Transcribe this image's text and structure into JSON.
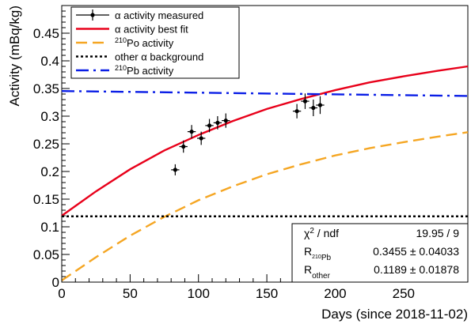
{
  "chart_data": {
    "type": "scatter",
    "xlabel": "Days (since 2018-11-02)",
    "ylabel": "Activity (mBq/kg)",
    "xlim": [
      0,
      297
    ],
    "ylim": [
      0,
      0.5
    ],
    "x_ticks": [
      "0",
      "50",
      "100",
      "150",
      "200",
      "250"
    ],
    "x_tick_values": [
      0,
      50,
      100,
      150,
      200,
      250
    ],
    "y_ticks": [
      "0",
      "0.05",
      "0.1",
      "0.15",
      "0.2",
      "0.25",
      "0.3",
      "0.35",
      "0.4",
      "0.45"
    ],
    "y_tick_values": [
      0,
      0.05,
      0.1,
      0.15,
      0.2,
      0.25,
      0.3,
      0.35,
      0.4,
      0.45
    ],
    "grid": false,
    "legend_position": "top-left",
    "legend": [
      {
        "key": "meas",
        "label_prefix": "α activity measured",
        "label_sup": "",
        "label_suffix": ""
      },
      {
        "key": "fit",
        "label_prefix": "α activity best fit",
        "label_sup": "",
        "label_suffix": ""
      },
      {
        "key": "po",
        "label_prefix": "",
        "label_sup": "210",
        "label_suffix": "Po activity"
      },
      {
        "key": "other",
        "label_prefix": "other α background",
        "label_sup": "",
        "label_suffix": ""
      },
      {
        "key": "pb",
        "label_prefix": "",
        "label_sup": "210",
        "label_suffix": "Pb activity"
      }
    ],
    "series": [
      {
        "name": "α activity measured",
        "style": "points",
        "color": "#000000",
        "points": [
          {
            "x": 83,
            "y": 0.203,
            "xerr": 3,
            "yerr": 0.01
          },
          {
            "x": 89,
            "y": 0.245,
            "xerr": 3,
            "yerr": 0.011
          },
          {
            "x": 95,
            "y": 0.272,
            "xerr": 3,
            "yerr": 0.012
          },
          {
            "x": 102,
            "y": 0.26,
            "xerr": 3,
            "yerr": 0.012
          },
          {
            "x": 108,
            "y": 0.283,
            "xerr": 3,
            "yerr": 0.012
          },
          {
            "x": 114,
            "y": 0.288,
            "xerr": 3,
            "yerr": 0.012
          },
          {
            "x": 120,
            "y": 0.292,
            "xerr": 3,
            "yerr": 0.013
          },
          {
            "x": 172,
            "y": 0.309,
            "xerr": 3,
            "yerr": 0.013
          },
          {
            "x": 178,
            "y": 0.327,
            "xerr": 3,
            "yerr": 0.014
          },
          {
            "x": 184,
            "y": 0.315,
            "xerr": 3,
            "yerr": 0.015
          },
          {
            "x": 189,
            "y": 0.32,
            "xerr": 3,
            "yerr": 0.016
          }
        ]
      },
      {
        "name": "α activity best fit",
        "style": "solid",
        "color": "#e8001a",
        "x": [
          0,
          25,
          50,
          75,
          100,
          125,
          150,
          175,
          200,
          225,
          250,
          275,
          297
        ],
        "y": [
          0.12,
          0.164,
          0.204,
          0.238,
          0.266,
          0.291,
          0.313,
          0.331,
          0.347,
          0.361,
          0.372,
          0.382,
          0.39
        ]
      },
      {
        "name": "Po activity",
        "style": "dashed",
        "color": "#f5a623",
        "x": [
          0,
          25,
          50,
          75,
          100,
          125,
          150,
          175,
          200,
          225,
          250,
          275,
          297
        ],
        "y": [
          0.003,
          0.045,
          0.084,
          0.118,
          0.148,
          0.173,
          0.195,
          0.213,
          0.229,
          0.242,
          0.253,
          0.263,
          0.271
        ]
      },
      {
        "name": "other α background",
        "style": "dotted",
        "color": "#000000",
        "x": [
          0,
          297
        ],
        "y": [
          0.1189,
          0.1189
        ]
      },
      {
        "name": "Pb activity",
        "style": "dashdot",
        "color": "#0a1ee6",
        "x": [
          0,
          297
        ],
        "y": [
          0.3455,
          0.3365
        ]
      }
    ],
    "stats_box": {
      "chi2_label": "χ",
      "chi2_sup": "2",
      "chi2_suffix": " / ndf",
      "chi2_value": "19.95 / 9",
      "r_pb_label": "R",
      "r_pb_sub_sup": "210",
      "r_pb_sub": "Pb",
      "r_pb_value": "0.3455 ± 0.04033",
      "r_other_label": "R",
      "r_other_sub": "other",
      "r_other_value": "0.1189 ± 0.01878"
    }
  }
}
